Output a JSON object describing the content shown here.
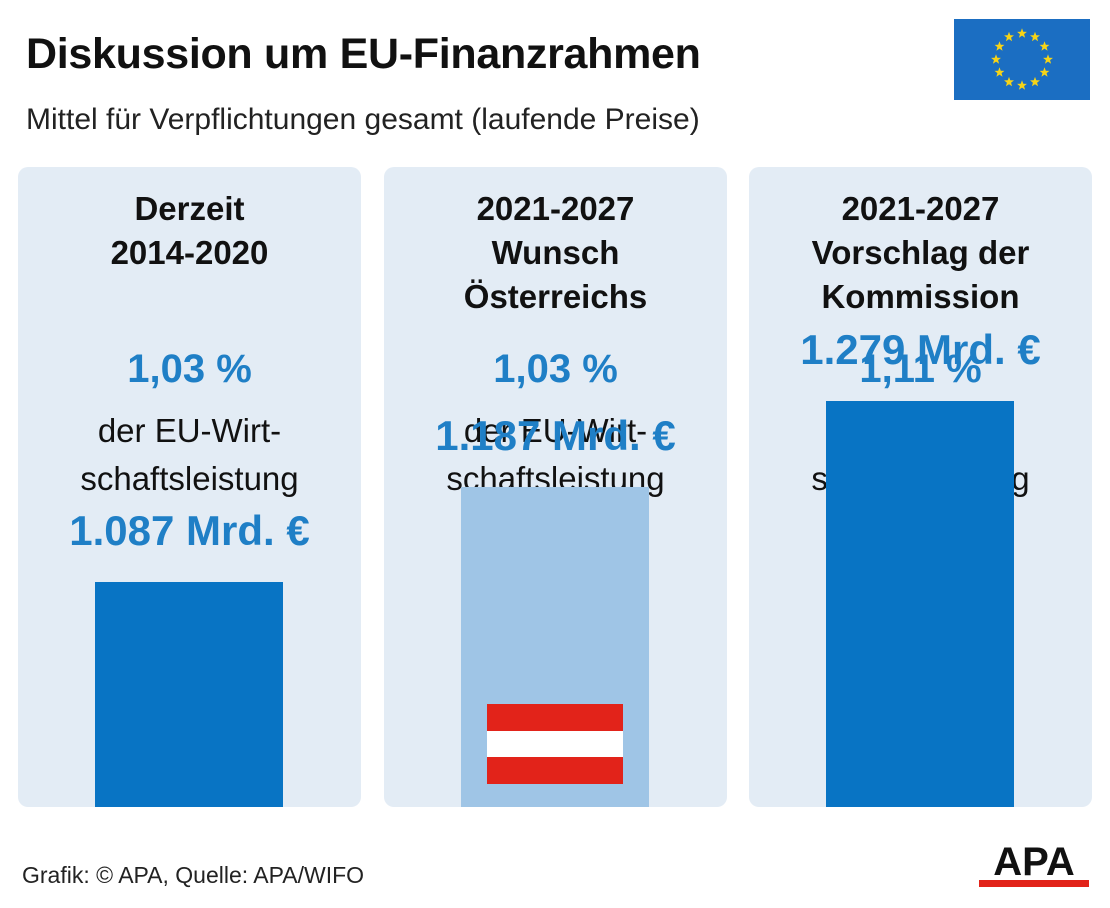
{
  "header": {
    "title": "Diskussion um EU-Finanzrahmen",
    "subtitle": "Mittel für Verpflichtungen gesamt (laufende Preise)",
    "flag_icon": "eu-flag-icon"
  },
  "chart_data": {
    "type": "bar",
    "categories": [
      "Derzeit\n2014-2020",
      "2021-2027\nWunsch\nÖsterreichs",
      "2021-2027\nVorschlag der\nKommission"
    ],
    "values": [
      1087,
      1187,
      1279
    ],
    "value_labels": [
      "1.087 Mrd. €",
      "1.187 Mrd. €",
      "1.279 Mrd. €"
    ],
    "percent_labels": [
      "1,03 %",
      "1,03 %",
      "1,11 %"
    ],
    "description": "der EU-Wirt-\nschaftsleistung",
    "unit": "Mrd. €",
    "bar_colors": [
      "#0874c4",
      "#9fc5e6",
      "#0874c4"
    ],
    "icons": [
      "",
      "austria-flag-icon",
      ""
    ]
  },
  "footer": {
    "source": "Grafik: © APA, Quelle: APA/WIFO",
    "logo_text": "APA",
    "logo_color": "#e2231a"
  }
}
